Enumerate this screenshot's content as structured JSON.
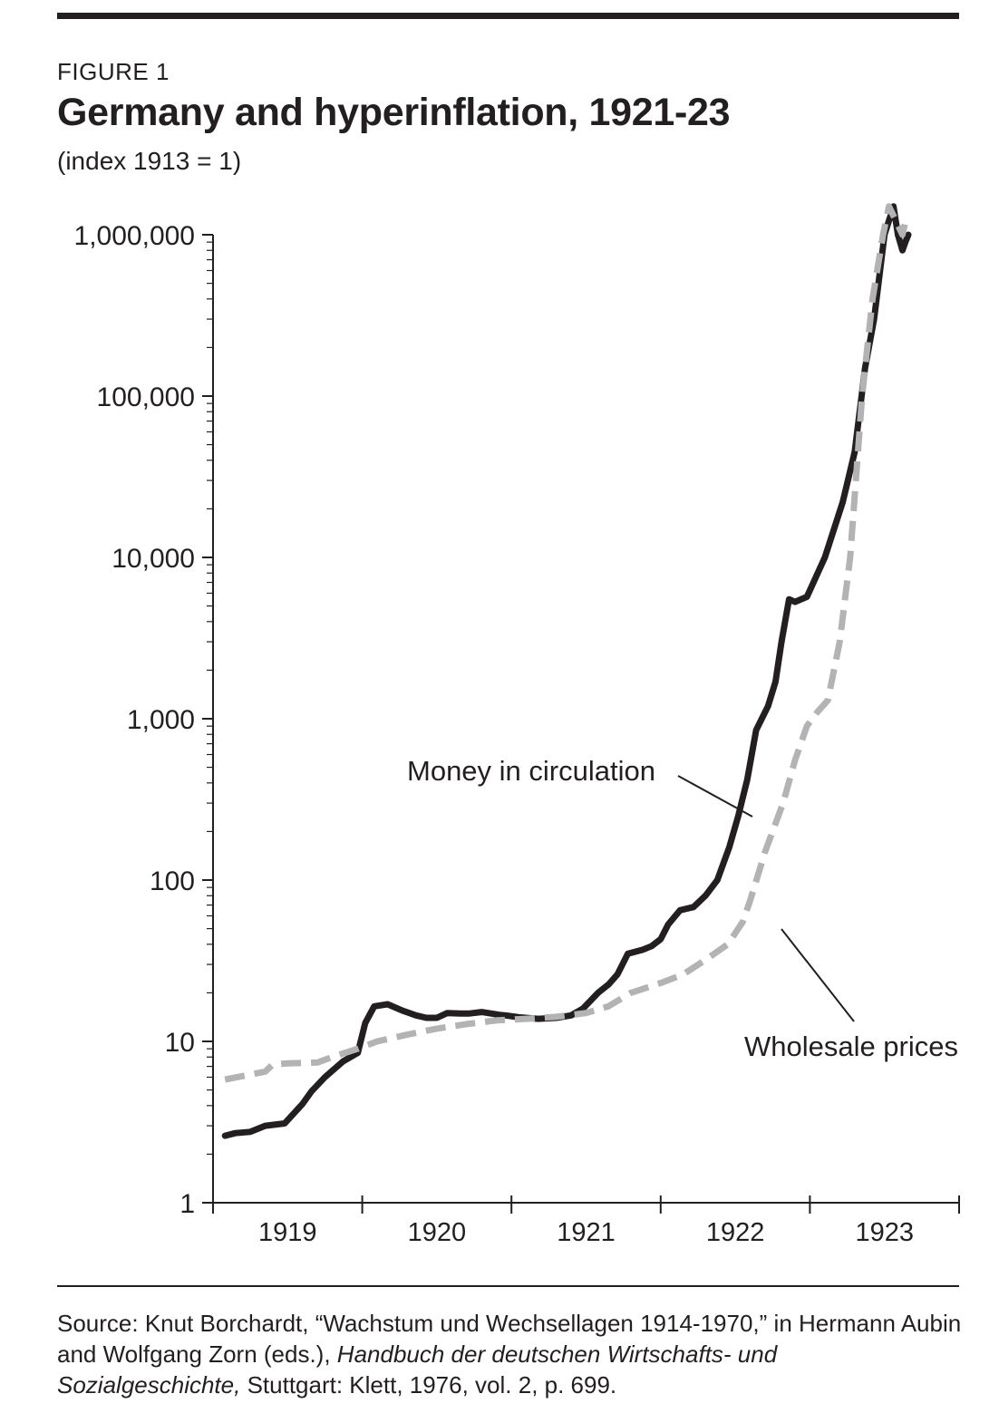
{
  "figure": {
    "label": "FIGURE 1",
    "title": "Germany and hyperinflation, 1921-23",
    "subtitle": "(index 1913 = 1)"
  },
  "source": {
    "prefix": "Source: Knut Borchardt, “Wachstum und Wechsellagen 1914-1970,” in Hermann Aubin and Wolfgang Zorn (eds.), ",
    "book_title": "Handbuch der deutschen Wirtschafts- und Sozialgeschichte,",
    "suffix": " Stuttgart: Klett, 1976, vol. 2, p. 699."
  },
  "chart_data": {
    "type": "line",
    "title": "Germany and hyperinflation, 1921-23",
    "subtitle": "(index 1913 = 1)",
    "xlabel": "",
    "ylabel": "",
    "y_scale": "log",
    "ylim": [
      1,
      1000000
    ],
    "xlim": [
      1919,
      1924
    ],
    "y_ticks": [
      {
        "value": 1,
        "label": "1"
      },
      {
        "value": 10,
        "label": "10"
      },
      {
        "value": 100,
        "label": "100"
      },
      {
        "value": 1000,
        "label": "1,000"
      },
      {
        "value": 10000,
        "label": "10,000"
      },
      {
        "value": 100000,
        "label": "100,000"
      },
      {
        "value": 1000000,
        "label": "1,000,000"
      }
    ],
    "x_ticks": [
      {
        "value": 1919.5,
        "label": "1919"
      },
      {
        "value": 1920.5,
        "label": "1920"
      },
      {
        "value": 1921.5,
        "label": "1921"
      },
      {
        "value": 1922.5,
        "label": "1922"
      },
      {
        "value": 1923.5,
        "label": "1923"
      }
    ],
    "grid": false,
    "legend": "inline labels",
    "series": [
      {
        "name": "Money in circulation",
        "style": "solid",
        "color": "#231f20",
        "x": [
          1919.08,
          1919.15,
          1919.25,
          1919.35,
          1919.48,
          1919.6,
          1919.66,
          1919.75,
          1919.87,
          1919.97,
          1920.02,
          1920.08,
          1920.17,
          1920.27,
          1920.36,
          1920.43,
          1920.5,
          1920.57,
          1920.66,
          1920.72,
          1920.8,
          1920.92,
          1920.96,
          1921.05,
          1921.18,
          1921.3,
          1921.4,
          1921.48,
          1921.58,
          1921.65,
          1921.71,
          1921.78,
          1921.88,
          1921.94,
          1922.0,
          1922.05,
          1922.13,
          1922.22,
          1922.3,
          1922.38,
          1922.46,
          1922.52,
          1922.58,
          1922.64,
          1922.72,
          1922.77,
          1922.81,
          1922.86,
          1922.9,
          1922.98,
          1923.1,
          1923.22,
          1923.3,
          1923.37,
          1923.43,
          1923.5,
          1923.56,
          1923.59,
          1923.62,
          1923.64,
          1923.66
        ],
        "values": [
          2.6,
          2.7,
          2.75,
          3.0,
          3.1,
          4.1,
          4.9,
          6.0,
          7.5,
          8.5,
          13.0,
          16.5,
          17.0,
          15.5,
          14.5,
          14.0,
          14.0,
          15.0,
          14.9,
          14.9,
          15.2,
          14.6,
          14.5,
          14.1,
          13.8,
          14.0,
          14.5,
          16.0,
          20.0,
          22.5,
          26.0,
          35.0,
          37.0,
          39.0,
          43.0,
          53.0,
          65.0,
          68.0,
          80.0,
          100.0,
          160.0,
          250.0,
          420.0,
          850.0,
          1200.0,
          1700.0,
          3000.0,
          5500.0,
          5300.0,
          5700.0,
          10000.0,
          22000.0,
          45000.0,
          150000.0,
          300000.0,
          1000000.0,
          1500000.0,
          1000000.0,
          800000.0,
          900000.0,
          1000000.0
        ]
      },
      {
        "name": "Wholesale prices",
        "style": "dashed",
        "color": "#b3b3b5",
        "x": [
          1919.08,
          1919.2,
          1919.35,
          1919.4,
          1919.5,
          1919.7,
          1919.8,
          1919.97,
          1920.1,
          1920.3,
          1920.5,
          1920.7,
          1920.9,
          1921.1,
          1921.3,
          1921.5,
          1921.65,
          1921.8,
          1922.0,
          1922.15,
          1922.3,
          1922.45,
          1922.55,
          1922.6,
          1922.7,
          1922.82,
          1922.9,
          1922.98,
          1923.05,
          1923.12,
          1923.2,
          1923.27,
          1923.35,
          1923.42,
          1923.49,
          1923.53,
          1923.58,
          1923.62,
          1923.64
        ],
        "values": [
          5.8,
          6.1,
          6.5,
          7.2,
          7.3,
          7.4,
          8.0,
          9.0,
          10.0,
          11.0,
          12.0,
          12.8,
          13.5,
          13.8,
          14.2,
          15.0,
          16.5,
          20.0,
          23.0,
          26.0,
          32.0,
          40.0,
          55.0,
          75.0,
          150.0,
          300.0,
          550.0,
          900.0,
          1100.0,
          1300.0,
          3000.0,
          10000.0,
          100000.0,
          400000.0,
          1000000.0,
          1500000.0,
          1200000.0,
          1000000.0,
          1200000.0
        ]
      }
    ],
    "annotations": [
      {
        "text": "Money in circulation",
        "series": "Money in circulation"
      },
      {
        "text": "Wholesale prices",
        "series": "Wholesale prices"
      }
    ]
  }
}
